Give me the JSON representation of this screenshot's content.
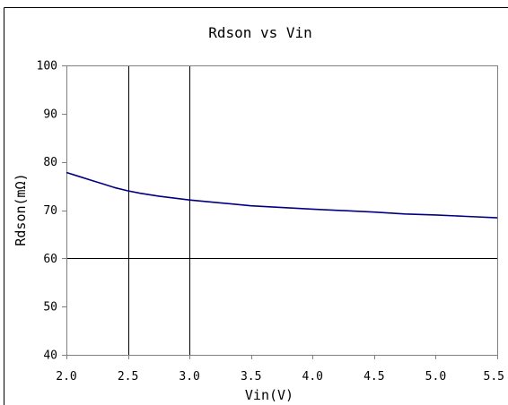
{
  "chart_data": {
    "type": "line",
    "title": "Rdson vs Vin",
    "xlabel": "Vin(V)",
    "ylabel": "Rdson(mΩ)",
    "xlim": [
      2.0,
      5.5
    ],
    "ylim": [
      40,
      100
    ],
    "x_ticks": [
      "2.0",
      "2.5",
      "3.0",
      "3.5",
      "4.0",
      "4.5",
      "5.0",
      "5.5"
    ],
    "y_ticks": [
      "40",
      "50",
      "60",
      "70",
      "80",
      "90",
      "100"
    ],
    "vertical_gridlines": [
      2.5,
      3.0
    ],
    "horizontal_gridlines": [
      60
    ],
    "grid": "partial",
    "legend": "none",
    "line_color": "#000080",
    "series": [
      {
        "x": [
          2.0,
          2.1,
          2.2,
          2.3,
          2.4,
          2.5,
          2.6,
          2.75,
          3.0,
          3.25,
          3.5,
          4.0,
          4.5,
          4.75,
          5.0,
          5.25,
          5.5
        ],
        "values": [
          77.8,
          77.0,
          76.2,
          75.4,
          74.6,
          74.0,
          73.5,
          72.9,
          72.1,
          71.5,
          70.9,
          70.2,
          69.6,
          69.2,
          69.0,
          68.7,
          68.4
        ]
      }
    ]
  }
}
